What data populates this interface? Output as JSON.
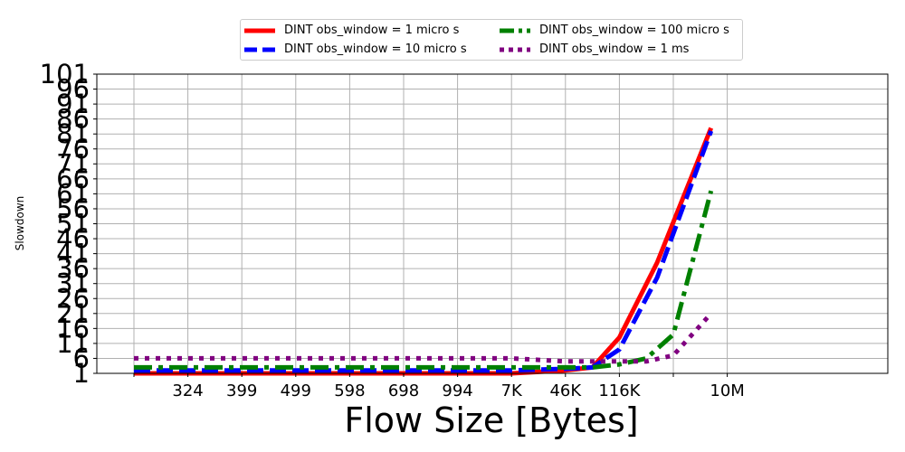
{
  "chart_data": {
    "type": "line",
    "title": "",
    "xlabel": "Flow Size [Bytes]",
    "ylabel": "Slowdown",
    "categories": [
      "",
      "324",
      "399",
      "499",
      "598",
      "698",
      "994",
      "7K",
      "46K",
      "116K",
      "",
      "10M"
    ],
    "y_ticks": [
      1,
      6,
      11,
      16,
      21,
      26,
      31,
      36,
      41,
      46,
      51,
      56,
      61,
      66,
      71,
      76,
      81,
      86,
      91,
      96,
      101
    ],
    "ylim": [
      1,
      101
    ],
    "grid": true,
    "legend_position": "top-center",
    "series": [
      {
        "name": "DINT obs_window = 1 micro s",
        "color": "#ff0000",
        "style": "solid",
        "x": [
          0,
          1,
          2,
          3,
          4,
          5,
          6,
          7,
          8,
          8.5,
          9,
          9.7,
          10.7
        ],
        "values": [
          1,
          1,
          1,
          1,
          1,
          1,
          1,
          1,
          2,
          3,
          13,
          38,
          83
        ]
      },
      {
        "name": "DINT obs_window = 10 micro s",
        "color": "#0000ff",
        "style": "dashed",
        "x": [
          0,
          1,
          2,
          3,
          4,
          5,
          6,
          7,
          8,
          8.5,
          9,
          9.7,
          10.7
        ],
        "values": [
          2,
          2,
          2,
          2,
          2,
          2,
          2,
          2,
          2.5,
          3,
          9,
          33,
          82
        ]
      },
      {
        "name": "DINT obs_window = 100 micro s",
        "color": "#008000",
        "style": "dashdot",
        "x": [
          0,
          1,
          2,
          3,
          4,
          5,
          6,
          7,
          8,
          8.5,
          9,
          9.5,
          10,
          10.7
        ],
        "values": [
          3,
          3,
          3,
          3,
          3,
          3,
          3,
          3,
          3,
          3,
          4,
          6,
          14,
          62
        ]
      },
      {
        "name": "DINT obs_window = 1 ms",
        "color": "#800080",
        "style": "dotted",
        "x": [
          0,
          1,
          2,
          3,
          4,
          5,
          6,
          7,
          8,
          9,
          9.5,
          10,
          10.7
        ],
        "values": [
          6,
          6,
          6,
          6,
          6,
          6,
          6,
          6,
          5,
          5,
          5,
          7,
          21
        ]
      }
    ]
  }
}
